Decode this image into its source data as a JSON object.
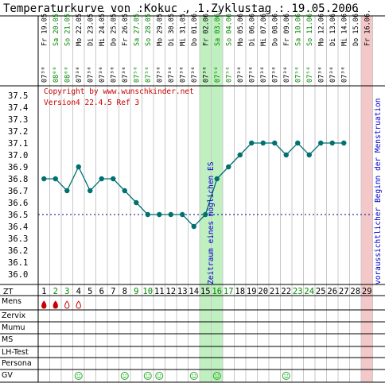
{
  "title": "Temperaturkurve von :Kokuc , 1.Zyklustag : 19.05.2006",
  "copyright": "Copyright by www.wunschkinder.net",
  "version": "Version4 22.4.5 Ref 3",
  "fertile_label": "Zeitraum eines möglichen ES",
  "menstruation_label": "voraussichtlicher Beginn der Menstruation",
  "zt_label": "ZT",
  "row_labels": [
    "Mens",
    "Zervix",
    "Mumu",
    "MS",
    "LH-Test",
    "Persona",
    "GV"
  ],
  "colors": {
    "green_day": "#008800",
    "fertile_band": "#c0f0c0",
    "mens_band": "#f4c8c8",
    "line": "#007070",
    "coverline": "#000080",
    "label_red": "#cc0000",
    "label_blue": "#0000cc"
  },
  "chart_data": {
    "type": "line",
    "ylim": [
      35.9,
      37.55
    ],
    "yticks": [
      "37.5",
      "37.4",
      "37.3",
      "37.2",
      "37.1",
      "37.0",
      "36.9",
      "36.8",
      "36.7",
      "36.6",
      "36.5",
      "36.4",
      "36.3",
      "36.2",
      "36.1",
      "36.0"
    ],
    "coverline": 36.5,
    "days": [
      {
        "zt": "1",
        "date": "Fr 19.05.",
        "time": "07³⁰",
        "temp": 36.8,
        "green": false,
        "mens": "full",
        "gv": false
      },
      {
        "zt": "2",
        "date": "Sa 20.05.",
        "time": "08⁰⁰",
        "temp": 36.8,
        "green": true,
        "mens": "full",
        "gv": false
      },
      {
        "zt": "3",
        "date": "So 21.05.",
        "time": "08⁰⁰",
        "temp": 36.7,
        "green": true,
        "mens": "light",
        "gv": false
      },
      {
        "zt": "4",
        "date": "Mo 22.05.",
        "time": "07³⁰",
        "temp": 36.9,
        "green": false,
        "mens": "light",
        "gv": true
      },
      {
        "zt": "5",
        "date": "Di 23.05.",
        "time": "07³⁰",
        "temp": 36.7,
        "green": false,
        "mens": "",
        "gv": false
      },
      {
        "zt": "6",
        "date": "Mi 24.05.",
        "time": "07³⁰",
        "temp": 36.8,
        "green": false,
        "mens": "",
        "gv": false
      },
      {
        "zt": "7",
        "date": "Do 25.05.",
        "time": "07³⁰",
        "temp": 36.8,
        "green": false,
        "mens": "",
        "gv": false
      },
      {
        "zt": "8",
        "date": "Fr 26.05.",
        "time": "07³⁰",
        "temp": 36.7,
        "green": false,
        "mens": "",
        "gv": true
      },
      {
        "zt": "9",
        "date": "Sa 27.05.",
        "time": "07⁵⁰",
        "temp": 36.6,
        "green": true,
        "mens": "",
        "gv": false
      },
      {
        "zt": "10",
        "date": "So 28.05.",
        "time": "07⁵⁰",
        "temp": 36.5,
        "green": true,
        "mens": "",
        "gv": true
      },
      {
        "zt": "11",
        "date": "Mo 29.05.",
        "time": "07³⁰",
        "temp": 36.5,
        "green": false,
        "mens": "",
        "gv": true
      },
      {
        "zt": "12",
        "date": "Di 30.05.",
        "time": "07³⁰",
        "temp": 36.5,
        "green": false,
        "mens": "",
        "gv": false
      },
      {
        "zt": "13",
        "date": "Mi 31.05.",
        "time": "07³⁰",
        "temp": 36.5,
        "green": false,
        "mens": "",
        "gv": false
      },
      {
        "zt": "14",
        "date": "Do 01.06.",
        "time": "07³⁰",
        "temp": 36.4,
        "green": false,
        "mens": "",
        "gv": true
      },
      {
        "zt": "15",
        "date": "Fr 02.06.",
        "time": "07³⁰",
        "temp": 36.5,
        "green": false,
        "mens": "",
        "gv": false
      },
      {
        "zt": "16",
        "date": "Sa 03.06.",
        "time": "07⁵⁰",
        "temp": 36.8,
        "green": true,
        "mens": "",
        "gv": true
      },
      {
        "zt": "17",
        "date": "So 04.06.",
        "time": "07⁵⁰",
        "temp": 36.9,
        "green": true,
        "mens": "",
        "gv": false
      },
      {
        "zt": "18",
        "date": "Mo 05.06.",
        "time": "07³⁰",
        "temp": 37.0,
        "green": false,
        "mens": "",
        "gv": false
      },
      {
        "zt": "19",
        "date": "Di 06.06.",
        "time": "07³⁰",
        "temp": 37.1,
        "green": false,
        "mens": "",
        "gv": false
      },
      {
        "zt": "20",
        "date": "Mi 07.06.",
        "time": "07³⁰",
        "temp": 37.1,
        "green": false,
        "mens": "",
        "gv": false
      },
      {
        "zt": "21",
        "date": "Do 08.06.",
        "time": "07³⁰",
        "temp": 37.1,
        "green": false,
        "mens": "",
        "gv": false
      },
      {
        "zt": "22",
        "date": "Fr 09.06.",
        "time": "07³⁰",
        "temp": 37.0,
        "green": false,
        "mens": "",
        "gv": true
      },
      {
        "zt": "23",
        "date": "Sa 10.06.",
        "time": "07⁵⁰",
        "temp": 37.1,
        "green": true,
        "mens": "",
        "gv": false
      },
      {
        "zt": "24",
        "date": "So 11.06.",
        "time": "07⁵⁰",
        "temp": 37.0,
        "green": true,
        "mens": "",
        "gv": false
      },
      {
        "zt": "25",
        "date": "Mo 12.06.",
        "time": "07³⁰",
        "temp": 37.1,
        "green": false,
        "mens": "",
        "gv": false
      },
      {
        "zt": "26",
        "date": "Di 13.06.",
        "time": "07³⁰",
        "temp": 37.1,
        "green": false,
        "mens": "",
        "gv": false
      },
      {
        "zt": "27",
        "date": "Mi 14.06.",
        "time": "07³⁰",
        "temp": 37.1,
        "green": false,
        "mens": "",
        "gv": false
      },
      {
        "zt": "28",
        "date": "Do 15.06.",
        "time": "",
        "temp": null,
        "green": false,
        "mens": "",
        "gv": false
      },
      {
        "zt": "29",
        "date": "Fr 16.06.",
        "time": "",
        "temp": null,
        "green": false,
        "mens": "",
        "gv": false
      }
    ],
    "fertile_days": [
      15,
      16
    ],
    "menstruation_day": 29
  }
}
